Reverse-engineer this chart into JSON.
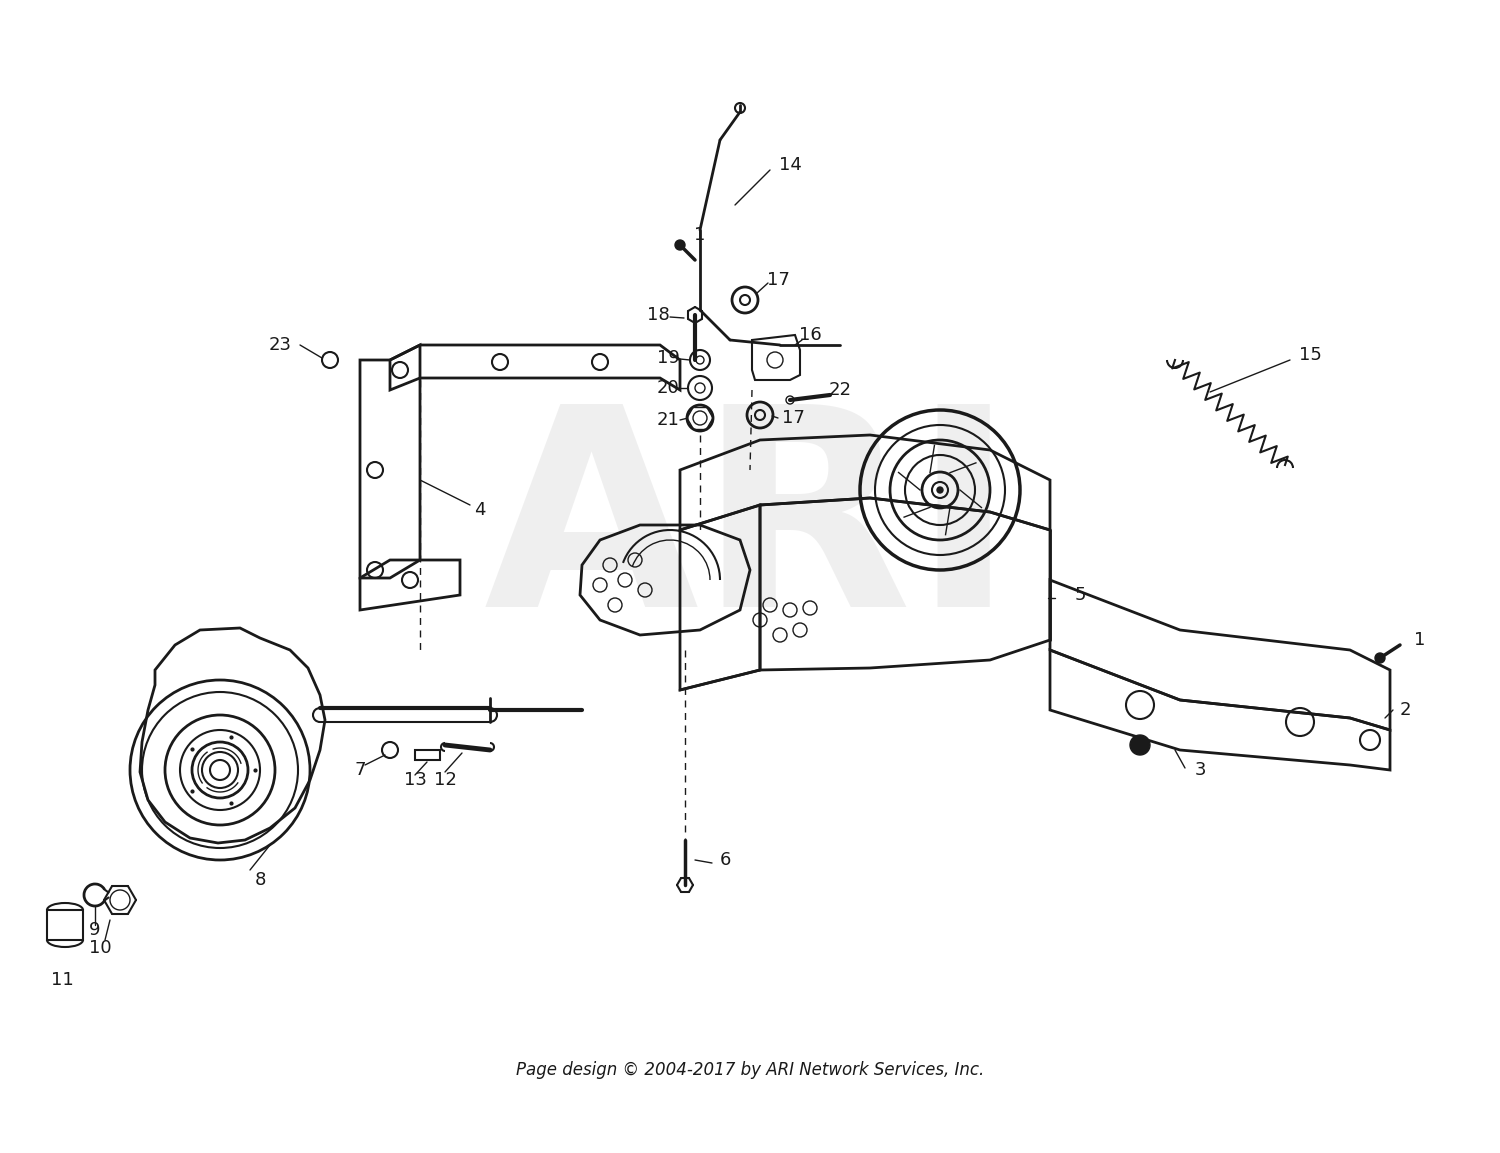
{
  "footer": "Page design © 2004-2017 by ARI Network Services, Inc.",
  "background_color": "#ffffff",
  "line_color": "#1a1a1a",
  "text_color": "#1a1a1a",
  "watermark_color": "#cccccc",
  "footer_fontsize": 12,
  "label_fontsize": 13,
  "fig_width": 15.0,
  "fig_height": 11.53,
  "dpi": 100
}
